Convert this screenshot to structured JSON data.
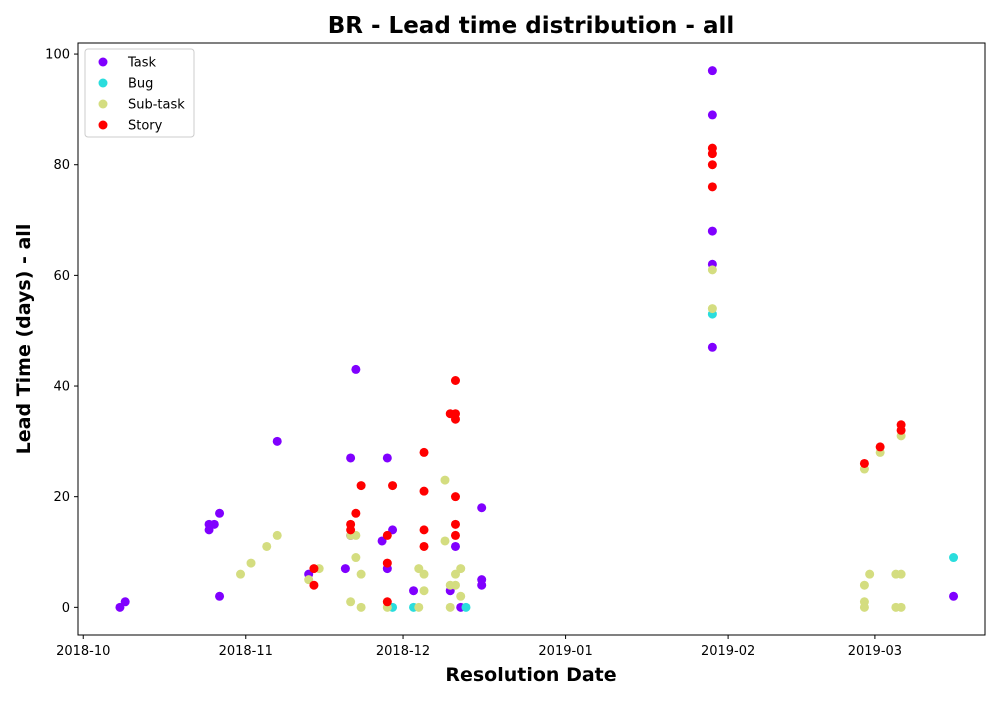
{
  "chart_data": {
    "type": "scatter",
    "title": "BR - Lead time distribution - all",
    "xlabel": "Resolution Date",
    "ylabel": "Lead Time (days) - all",
    "x_axis": "date",
    "xlim": [
      "2018-09-30",
      "2019-03-22"
    ],
    "ylim": [
      -5,
      102
    ],
    "x_ticks": [
      "2018-10",
      "2018-11",
      "2018-12",
      "2019-01",
      "2019-02",
      "2019-03"
    ],
    "y_ticks": [
      0,
      20,
      40,
      60,
      80,
      100
    ],
    "grid": false,
    "legend_position": "top-left",
    "series": [
      {
        "name": "Task",
        "color": "#8000ff",
        "points": [
          [
            "2018-10-08",
            0
          ],
          [
            "2018-10-09",
            1
          ],
          [
            "2018-10-25",
            15
          ],
          [
            "2018-10-25",
            14
          ],
          [
            "2018-10-26",
            15
          ],
          [
            "2018-10-27",
            17
          ],
          [
            "2018-10-27",
            2
          ],
          [
            "2018-11-07",
            30
          ],
          [
            "2018-11-13",
            6
          ],
          [
            "2018-11-20",
            7
          ],
          [
            "2018-11-21",
            27
          ],
          [
            "2018-11-21",
            13
          ],
          [
            "2018-11-22",
            43
          ],
          [
            "2018-11-27",
            12
          ],
          [
            "2018-11-28",
            27
          ],
          [
            "2018-11-28",
            7
          ],
          [
            "2018-11-29",
            14
          ],
          [
            "2018-12-03",
            3
          ],
          [
            "2018-12-10",
            3
          ],
          [
            "2018-12-11",
            11
          ],
          [
            "2018-12-12",
            0
          ],
          [
            "2018-12-16",
            18
          ],
          [
            "2018-12-16",
            5
          ],
          [
            "2018-12-16",
            4
          ],
          [
            "2019-01-29",
            97
          ],
          [
            "2019-01-29",
            89
          ],
          [
            "2019-01-29",
            68
          ],
          [
            "2019-01-29",
            62
          ],
          [
            "2019-01-29",
            47
          ],
          [
            "2019-03-16",
            2
          ]
        ]
      },
      {
        "name": "Bug",
        "color": "#2adddd",
        "points": [
          [
            "2018-11-29",
            0
          ],
          [
            "2018-12-03",
            0
          ],
          [
            "2018-12-13",
            0
          ],
          [
            "2019-01-29",
            53
          ],
          [
            "2019-03-16",
            9
          ]
        ]
      },
      {
        "name": "Sub-task",
        "color": "#d4dd80",
        "points": [
          [
            "2018-10-31",
            6
          ],
          [
            "2018-11-02",
            8
          ],
          [
            "2018-11-05",
            11
          ],
          [
            "2018-11-07",
            13
          ],
          [
            "2018-11-13",
            5
          ],
          [
            "2018-11-15",
            7
          ],
          [
            "2018-11-21",
            1
          ],
          [
            "2018-11-21",
            13
          ],
          [
            "2018-11-22",
            9
          ],
          [
            "2018-11-22",
            13
          ],
          [
            "2018-11-23",
            0
          ],
          [
            "2018-11-23",
            6
          ],
          [
            "2018-11-28",
            0
          ],
          [
            "2018-12-04",
            0
          ],
          [
            "2018-12-04",
            7
          ],
          [
            "2018-12-05",
            6
          ],
          [
            "2018-12-05",
            3
          ],
          [
            "2018-12-09",
            23
          ],
          [
            "2018-12-09",
            12
          ],
          [
            "2018-12-10",
            4
          ],
          [
            "2018-12-10",
            0
          ],
          [
            "2018-12-11",
            4
          ],
          [
            "2018-12-11",
            6
          ],
          [
            "2018-12-12",
            2
          ],
          [
            "2018-12-12",
            7
          ],
          [
            "2019-01-29",
            61
          ],
          [
            "2019-01-29",
            54
          ],
          [
            "2019-02-27",
            25
          ],
          [
            "2019-02-27",
            4
          ],
          [
            "2019-02-27",
            1
          ],
          [
            "2019-02-27",
            0
          ],
          [
            "2019-02-28",
            6
          ],
          [
            "2019-03-02",
            28
          ],
          [
            "2019-03-05",
            6
          ],
          [
            "2019-03-05",
            0
          ],
          [
            "2019-03-06",
            31
          ],
          [
            "2019-03-06",
            6
          ],
          [
            "2019-03-06",
            0
          ]
        ]
      },
      {
        "name": "Story",
        "color": "#ff0000",
        "points": [
          [
            "2018-11-14",
            7
          ],
          [
            "2018-11-14",
            4
          ],
          [
            "2018-11-21",
            15
          ],
          [
            "2018-11-21",
            14
          ],
          [
            "2018-11-22",
            17
          ],
          [
            "2018-11-23",
            22
          ],
          [
            "2018-11-28",
            13
          ],
          [
            "2018-11-28",
            8
          ],
          [
            "2018-11-28",
            1
          ],
          [
            "2018-11-29",
            22
          ],
          [
            "2018-12-05",
            28
          ],
          [
            "2018-12-05",
            21
          ],
          [
            "2018-12-05",
            14
          ],
          [
            "2018-12-05",
            11
          ],
          [
            "2018-12-10",
            35
          ],
          [
            "2018-12-11",
            41
          ],
          [
            "2018-12-11",
            35
          ],
          [
            "2018-12-11",
            34
          ],
          [
            "2018-12-11",
            20
          ],
          [
            "2018-12-11",
            15
          ],
          [
            "2018-12-11",
            13
          ],
          [
            "2019-01-29",
            83
          ],
          [
            "2019-01-29",
            82
          ],
          [
            "2019-01-29",
            80
          ],
          [
            "2019-01-29",
            76
          ],
          [
            "2019-02-27",
            26
          ],
          [
            "2019-03-02",
            29
          ],
          [
            "2019-03-06",
            33
          ],
          [
            "2019-03-06",
            32
          ]
        ]
      }
    ]
  }
}
